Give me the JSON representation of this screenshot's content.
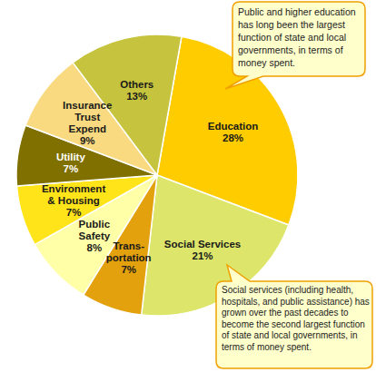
{
  "chart_data": {
    "type": "pie",
    "categories": [
      "Education",
      "Social Services",
      "Trans-\nportation",
      "Public\nSafety",
      "Environment\n& Housing",
      "Utility",
      "Insurance\nTrust\nExpend",
      "Others"
    ],
    "values": [
      28,
      21,
      7,
      8,
      7,
      7,
      9,
      13
    ],
    "value_labels": [
      "28%",
      "21%",
      "7%",
      "8%",
      "7%",
      "7%",
      "9%",
      "13%"
    ],
    "colors": [
      "#FFCC00",
      "#DDE66A",
      "#E3A10E",
      "#FFFFA8",
      "#FFE41A",
      "#7F7000",
      "#F9DA80",
      "#C6C43E"
    ],
    "data_labels": true,
    "annotations": [
      "Public and higher education has long been the largest function of state and local governments, in terms of money spent.",
      "Social services (including health, hospitals, and public assistance) has grown over the past decades to become the second largest function of state and local governments, in terms of money spent."
    ]
  }
}
